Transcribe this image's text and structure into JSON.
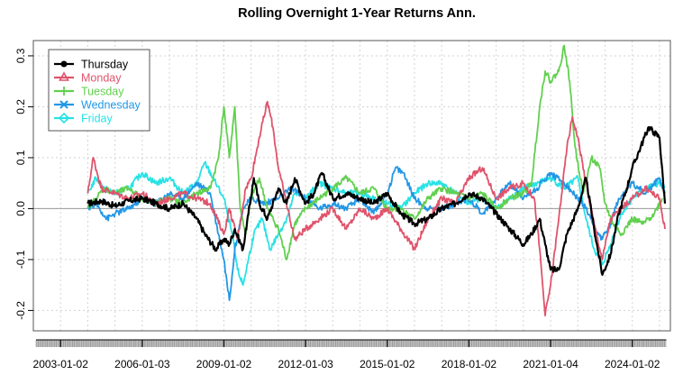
{
  "chart_data": {
    "type": "line",
    "title": "Rolling Overnight 1-Year Returns Ann.",
    "xlabel": "",
    "ylabel": "",
    "x_tick_labels": [
      "2003-01-02",
      "2006-01-03",
      "2009-01-02",
      "2012-01-03",
      "2015-01-02",
      "2018-01-02",
      "2021-01-04",
      "2024-01-02"
    ],
    "x_tick_years": [
      2003.0,
      2006.0,
      2009.0,
      2012.0,
      2015.0,
      2018.0,
      2021.0,
      2024.0
    ],
    "xlim": [
      2002.0,
      2025.4
    ],
    "y_ticks": [
      -0.2,
      -0.1,
      0.0,
      0.1,
      0.2,
      0.3
    ],
    "y_tick_labels": [
      "-0.2",
      "-0.1",
      "0.0",
      "0.1",
      "0.2",
      "0.3"
    ],
    "ylim": [
      -0.24,
      0.33
    ],
    "grid": true,
    "legend_position": "top-left",
    "series": [
      {
        "name": "Thursday",
        "color": "#000000",
        "marker": "circle",
        "points": [
          [
            2004.0,
            0.01
          ],
          [
            2004.5,
            0.015
          ],
          [
            2005.0,
            0.005
          ],
          [
            2005.5,
            0.015
          ],
          [
            2006.0,
            0.02
          ],
          [
            2006.5,
            0.01
          ],
          [
            2007.0,
            0.0
          ],
          [
            2007.5,
            0.01
          ],
          [
            2008.0,
            -0.02
          ],
          [
            2008.3,
            -0.05
          ],
          [
            2008.7,
            -0.08
          ],
          [
            2009.0,
            -0.06
          ],
          [
            2009.2,
            -0.07
          ],
          [
            2009.4,
            -0.04
          ],
          [
            2009.7,
            -0.08
          ],
          [
            2009.9,
            -0.01
          ],
          [
            2010.1,
            0.06
          ],
          [
            2010.3,
            0.01
          ],
          [
            2010.6,
            -0.02
          ],
          [
            2011.0,
            0.04
          ],
          [
            2011.3,
            0.01
          ],
          [
            2011.6,
            0.06
          ],
          [
            2012.0,
            0.01
          ],
          [
            2012.3,
            0.03
          ],
          [
            2012.6,
            0.07
          ],
          [
            2013.0,
            0.02
          ],
          [
            2013.5,
            0.03
          ],
          [
            2014.0,
            0.02
          ],
          [
            2014.5,
            0.01
          ],
          [
            2015.0,
            0.03
          ],
          [
            2015.5,
            -0.01
          ],
          [
            2016.0,
            -0.03
          ],
          [
            2016.5,
            -0.02
          ],
          [
            2017.0,
            0.0
          ],
          [
            2017.5,
            0.01
          ],
          [
            2018.0,
            0.03
          ],
          [
            2018.5,
            0.02
          ],
          [
            2019.0,
            -0.01
          ],
          [
            2019.5,
            -0.04
          ],
          [
            2020.0,
            -0.07
          ],
          [
            2020.3,
            -0.05
          ],
          [
            2020.6,
            -0.02
          ],
          [
            2020.8,
            -0.07
          ],
          [
            2021.0,
            -0.12
          ],
          [
            2021.3,
            -0.12
          ],
          [
            2021.6,
            -0.05
          ],
          [
            2022.0,
            0.0
          ],
          [
            2022.3,
            0.06
          ],
          [
            2022.6,
            -0.04
          ],
          [
            2022.9,
            -0.13
          ],
          [
            2023.2,
            -0.09
          ],
          [
            2023.5,
            -0.01
          ],
          [
            2023.8,
            0.04
          ],
          [
            2024.0,
            0.08
          ],
          [
            2024.3,
            0.12
          ],
          [
            2024.6,
            0.16
          ],
          [
            2024.8,
            0.15
          ],
          [
            2025.0,
            0.14
          ],
          [
            2025.2,
            0.01
          ]
        ]
      },
      {
        "name": "Monday",
        "color": "#df536b",
        "marker": "triangle",
        "points": [
          [
            2004.0,
            0.03
          ],
          [
            2004.2,
            0.1
          ],
          [
            2004.5,
            0.04
          ],
          [
            2005.0,
            0.03
          ],
          [
            2005.5,
            0.02
          ],
          [
            2006.0,
            0.03
          ],
          [
            2006.5,
            0.01
          ],
          [
            2007.0,
            0.02
          ],
          [
            2007.5,
            0.03
          ],
          [
            2008.0,
            0.02
          ],
          [
            2008.5,
            0.01
          ],
          [
            2009.0,
            -0.05
          ],
          [
            2009.2,
            0.0
          ],
          [
            2009.5,
            -0.06
          ],
          [
            2009.8,
            0.04
          ],
          [
            2010.0,
            0.06
          ],
          [
            2010.3,
            0.14
          ],
          [
            2010.6,
            0.21
          ],
          [
            2010.8,
            0.16
          ],
          [
            2011.0,
            0.08
          ],
          [
            2011.3,
            0.01
          ],
          [
            2011.6,
            -0.06
          ],
          [
            2012.0,
            -0.04
          ],
          [
            2012.5,
            -0.02
          ],
          [
            2013.0,
            0.0
          ],
          [
            2013.5,
            -0.04
          ],
          [
            2014.0,
            0.0
          ],
          [
            2014.5,
            -0.02
          ],
          [
            2015.0,
            0.0
          ],
          [
            2015.5,
            -0.04
          ],
          [
            2016.0,
            -0.08
          ],
          [
            2016.5,
            -0.02
          ],
          [
            2017.0,
            0.02
          ],
          [
            2017.5,
            0.01
          ],
          [
            2018.0,
            0.06
          ],
          [
            2018.5,
            0.08
          ],
          [
            2019.0,
            0.02
          ],
          [
            2019.5,
            0.04
          ],
          [
            2020.0,
            0.05
          ],
          [
            2020.4,
            0.02
          ],
          [
            2020.6,
            -0.08
          ],
          [
            2020.8,
            -0.21
          ],
          [
            2021.0,
            -0.15
          ],
          [
            2021.3,
            -0.02
          ],
          [
            2021.6,
            0.12
          ],
          [
            2021.8,
            0.18
          ],
          [
            2022.0,
            0.14
          ],
          [
            2022.3,
            0.05
          ],
          [
            2022.6,
            -0.03
          ],
          [
            2022.9,
            -0.1
          ],
          [
            2023.2,
            -0.02
          ],
          [
            2023.6,
            0.0
          ],
          [
            2024.0,
            0.02
          ],
          [
            2024.5,
            0.04
          ],
          [
            2025.0,
            0.02
          ],
          [
            2025.2,
            -0.04
          ]
        ]
      },
      {
        "name": "Tuesday",
        "color": "#61d04f",
        "marker": "plus",
        "points": [
          [
            2004.0,
            0.0
          ],
          [
            2004.3,
            0.02
          ],
          [
            2004.6,
            0.04
          ],
          [
            2005.0,
            0.03
          ],
          [
            2005.5,
            0.04
          ],
          [
            2006.0,
            0.02
          ],
          [
            2006.5,
            0.01
          ],
          [
            2007.0,
            0.02
          ],
          [
            2007.5,
            0.01
          ],
          [
            2008.0,
            0.03
          ],
          [
            2008.5,
            0.04
          ],
          [
            2008.8,
            0.1
          ],
          [
            2009.0,
            0.2
          ],
          [
            2009.2,
            0.1
          ],
          [
            2009.4,
            0.2
          ],
          [
            2009.6,
            0.0
          ],
          [
            2009.8,
            -0.05
          ],
          [
            2010.0,
            0.02
          ],
          [
            2010.3,
            0.06
          ],
          [
            2010.6,
            0.0
          ],
          [
            2011.0,
            -0.04
          ],
          [
            2011.3,
            -0.1
          ],
          [
            2011.6,
            -0.03
          ],
          [
            2012.0,
            0.0
          ],
          [
            2012.5,
            0.02
          ],
          [
            2013.0,
            0.04
          ],
          [
            2013.5,
            0.06
          ],
          [
            2014.0,
            0.03
          ],
          [
            2014.5,
            0.04
          ],
          [
            2015.0,
            0.0
          ],
          [
            2015.5,
            0.0
          ],
          [
            2016.0,
            -0.02
          ],
          [
            2016.5,
            0.02
          ],
          [
            2017.0,
            0.04
          ],
          [
            2017.5,
            0.03
          ],
          [
            2018.0,
            0.02
          ],
          [
            2018.5,
            0.03
          ],
          [
            2019.0,
            0.0
          ],
          [
            2019.5,
            0.02
          ],
          [
            2020.0,
            0.03
          ],
          [
            2020.3,
            0.05
          ],
          [
            2020.6,
            0.2
          ],
          [
            2020.8,
            0.27
          ],
          [
            2021.0,
            0.25
          ],
          [
            2021.3,
            0.27
          ],
          [
            2021.5,
            0.32
          ],
          [
            2021.7,
            0.25
          ],
          [
            2021.9,
            0.12
          ],
          [
            2022.2,
            0.03
          ],
          [
            2022.5,
            0.1
          ],
          [
            2022.8,
            0.08
          ],
          [
            2023.0,
            0.01
          ],
          [
            2023.3,
            -0.03
          ],
          [
            2023.6,
            -0.05
          ],
          [
            2024.0,
            -0.02
          ],
          [
            2024.4,
            -0.03
          ],
          [
            2024.8,
            -0.01
          ],
          [
            2025.1,
            0.02
          ]
        ]
      },
      {
        "name": "Wednesday",
        "color": "#2297e6",
        "marker": "cross",
        "points": [
          [
            2004.0,
            0.0
          ],
          [
            2004.3,
            0.01
          ],
          [
            2004.7,
            -0.02
          ],
          [
            2005.0,
            -0.01
          ],
          [
            2005.5,
            0.0
          ],
          [
            2006.0,
            0.02
          ],
          [
            2006.5,
            0.01
          ],
          [
            2007.0,
            0.03
          ],
          [
            2007.5,
            0.02
          ],
          [
            2008.0,
            0.05
          ],
          [
            2008.5,
            0.03
          ],
          [
            2008.8,
            -0.05
          ],
          [
            2009.0,
            -0.1
          ],
          [
            2009.2,
            -0.18
          ],
          [
            2009.4,
            -0.08
          ],
          [
            2009.7,
            0.0
          ],
          [
            2010.0,
            0.02
          ],
          [
            2010.5,
            0.01
          ],
          [
            2011.0,
            0.02
          ],
          [
            2011.5,
            0.04
          ],
          [
            2012.0,
            0.02
          ],
          [
            2012.5,
            0.0
          ],
          [
            2013.0,
            0.01
          ],
          [
            2013.5,
            0.0
          ],
          [
            2014.0,
            0.02
          ],
          [
            2014.5,
            -0.01
          ],
          [
            2015.0,
            0.03
          ],
          [
            2015.3,
            0.08
          ],
          [
            2015.6,
            0.07
          ],
          [
            2016.0,
            0.02
          ],
          [
            2016.5,
            0.0
          ],
          [
            2017.0,
            0.0
          ],
          [
            2017.5,
            0.01
          ],
          [
            2018.0,
            0.02
          ],
          [
            2018.5,
            -0.01
          ],
          [
            2019.0,
            0.02
          ],
          [
            2019.5,
            0.05
          ],
          [
            2020.0,
            0.02
          ],
          [
            2020.5,
            0.04
          ],
          [
            2021.0,
            0.07
          ],
          [
            2021.5,
            0.05
          ],
          [
            2022.0,
            0.02
          ],
          [
            2022.3,
            0.0
          ],
          [
            2022.6,
            -0.04
          ],
          [
            2022.9,
            -0.06
          ],
          [
            2023.2,
            -0.03
          ],
          [
            2023.5,
            0.02
          ],
          [
            2024.0,
            0.05
          ],
          [
            2024.5,
            0.03
          ],
          [
            2025.0,
            0.06
          ],
          [
            2025.2,
            0.03
          ]
        ]
      },
      {
        "name": "Friday",
        "color": "#28e2e5",
        "marker": "diamond",
        "points": [
          [
            2004.0,
            0.03
          ],
          [
            2004.3,
            0.06
          ],
          [
            2004.6,
            0.04
          ],
          [
            2005.0,
            0.03
          ],
          [
            2005.5,
            0.04
          ],
          [
            2006.0,
            0.07
          ],
          [
            2006.5,
            0.05
          ],
          [
            2007.0,
            0.06
          ],
          [
            2007.5,
            0.03
          ],
          [
            2008.0,
            0.05
          ],
          [
            2008.3,
            0.09
          ],
          [
            2008.6,
            0.06
          ],
          [
            2009.0,
            0.02
          ],
          [
            2009.3,
            -0.05
          ],
          [
            2009.5,
            -0.12
          ],
          [
            2009.7,
            -0.15
          ],
          [
            2009.9,
            -0.1
          ],
          [
            2010.1,
            -0.05
          ],
          [
            2010.4,
            -0.02
          ],
          [
            2010.7,
            -0.08
          ],
          [
            2011.0,
            -0.05
          ],
          [
            2011.3,
            -0.02
          ],
          [
            2011.6,
            0.03
          ],
          [
            2012.0,
            0.02
          ],
          [
            2012.5,
            0.05
          ],
          [
            2013.0,
            0.04
          ],
          [
            2013.5,
            0.03
          ],
          [
            2014.0,
            0.03
          ],
          [
            2014.5,
            0.02
          ],
          [
            2015.0,
            0.01
          ],
          [
            2015.5,
            0.0
          ],
          [
            2016.0,
            0.03
          ],
          [
            2016.5,
            0.05
          ],
          [
            2017.0,
            0.05
          ],
          [
            2017.5,
            0.03
          ],
          [
            2018.0,
            0.01
          ],
          [
            2018.5,
            0.02
          ],
          [
            2019.0,
            0.0
          ],
          [
            2019.5,
            0.02
          ],
          [
            2020.0,
            0.04
          ],
          [
            2020.5,
            0.05
          ],
          [
            2021.0,
            0.06
          ],
          [
            2021.5,
            0.04
          ],
          [
            2022.0,
            0.06
          ],
          [
            2022.3,
            -0.02
          ],
          [
            2022.6,
            -0.08
          ],
          [
            2022.9,
            -0.11
          ],
          [
            2023.2,
            -0.07
          ],
          [
            2023.6,
            -0.01
          ],
          [
            2024.0,
            0.02
          ],
          [
            2024.5,
            0.04
          ],
          [
            2025.0,
            0.05
          ],
          [
            2025.2,
            0.04
          ]
        ]
      }
    ]
  }
}
